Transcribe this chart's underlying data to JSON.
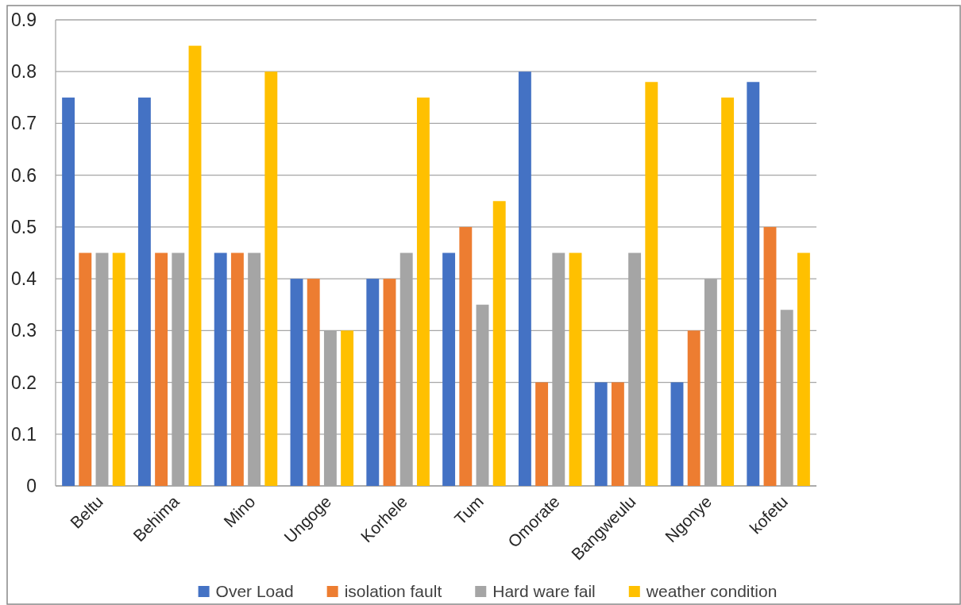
{
  "chart_data": {
    "type": "bar",
    "categories": [
      "Beltu",
      "Behima",
      "Mino",
      "Ungoge",
      "Korhele",
      "Tum",
      "Omorate",
      "Bangweulu",
      "Ngonye",
      "kofetu"
    ],
    "series": [
      {
        "name": "Over Load",
        "color": "#4472c4",
        "values": [
          0.75,
          0.75,
          0.45,
          0.4,
          0.4,
          0.45,
          0.8,
          0.2,
          0.2,
          0.78
        ]
      },
      {
        "name": "isolation fault",
        "color": "#ed7d31",
        "values": [
          0.45,
          0.45,
          0.45,
          0.4,
          0.4,
          0.5,
          0.2,
          0.2,
          0.3,
          0.5
        ]
      },
      {
        "name": "Hard ware fail",
        "color": "#a5a5a5",
        "values": [
          0.45,
          0.45,
          0.45,
          0.3,
          0.45,
          0.35,
          0.45,
          0.45,
          0.4,
          0.34
        ]
      },
      {
        "name": "weather condition",
        "color": "#ffc000",
        "values": [
          0.45,
          0.85,
          0.8,
          0.3,
          0.75,
          0.55,
          0.45,
          0.78,
          0.75,
          0.45
        ]
      }
    ],
    "ylim": [
      0,
      0.9
    ],
    "yticks": [
      0,
      0.1,
      0.2,
      0.3,
      0.4,
      0.5,
      0.6,
      0.7,
      0.8,
      0.9
    ],
    "grid": "y",
    "legend": "bottom"
  }
}
